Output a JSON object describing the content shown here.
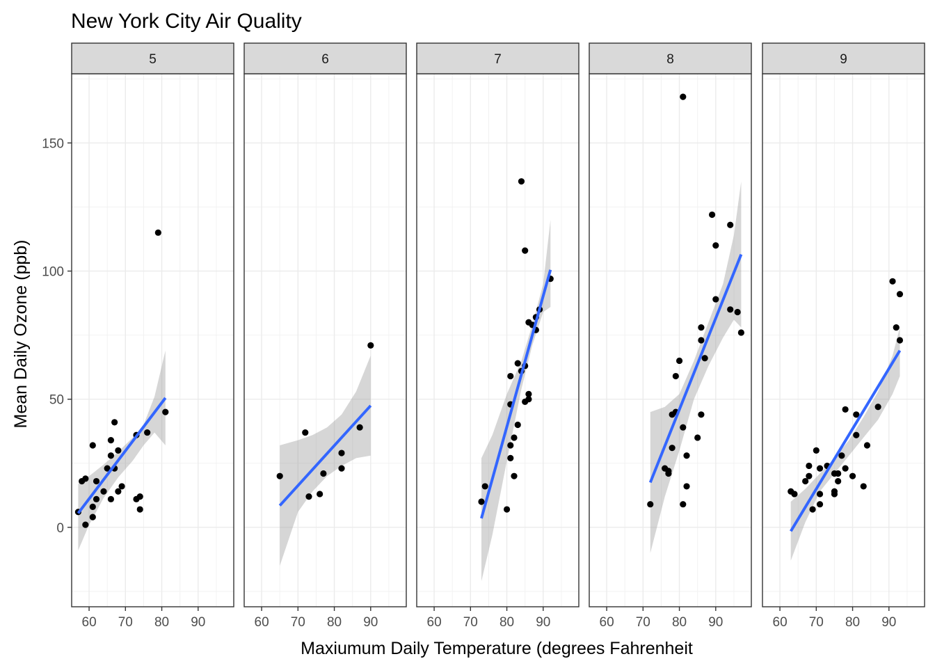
{
  "chart_data": {
    "type": "scatter",
    "title": "New York City Air Quality",
    "xlabel": "Maxiumum Daily Temperature (degrees Fahrenheit",
    "ylabel": "Mean Daily Ozone (ppb)",
    "xlim": [
      55.2,
      99.8
    ],
    "ylim": [
      -31,
      177
    ],
    "x_ticks": [
      60,
      70,
      80,
      90
    ],
    "y_ticks": [
      0,
      50,
      100,
      150
    ],
    "grid": true,
    "colors": {
      "points": "#000000",
      "fit_line": "#3366ff",
      "ribbon": "#999999",
      "strip_fill": "#d9d9d9"
    },
    "facets": [
      {
        "label": "5",
        "points": [
          [
            57,
            6
          ],
          [
            58,
            18
          ],
          [
            59,
            19
          ],
          [
            59,
            1
          ],
          [
            61,
            32
          ],
          [
            61,
            4
          ],
          [
            61,
            8
          ],
          [
            62,
            11
          ],
          [
            62,
            18
          ],
          [
            64,
            14
          ],
          [
            65,
            23
          ],
          [
            66,
            34
          ],
          [
            66,
            28
          ],
          [
            66,
            11
          ],
          [
            67,
            41
          ],
          [
            67,
            23
          ],
          [
            68,
            14
          ],
          [
            68,
            30
          ],
          [
            69,
            16
          ],
          [
            73,
            36
          ],
          [
            73,
            11
          ],
          [
            74,
            7
          ],
          [
            74,
            12
          ],
          [
            76,
            37
          ],
          [
            79,
            115
          ],
          [
            81,
            45
          ]
        ],
        "fit": [
          [
            57,
            5.5
          ],
          [
            81,
            50.5
          ]
        ],
        "ribbon_upper": [
          [
            57,
            17
          ],
          [
            60,
            20
          ],
          [
            64,
            24.5
          ],
          [
            68,
            29.5
          ],
          [
            72,
            35
          ],
          [
            75,
            40
          ],
          [
            78,
            51
          ],
          [
            81,
            69
          ]
        ],
        "ribbon_lower": [
          [
            57,
            -9
          ],
          [
            60,
            1
          ],
          [
            64,
            11.5
          ],
          [
            68,
            19.5
          ],
          [
            72,
            26
          ],
          [
            75,
            32
          ],
          [
            78,
            37
          ],
          [
            81,
            32
          ]
        ]
      },
      {
        "label": "6",
        "points": [
          [
            65,
            20
          ],
          [
            72,
            37
          ],
          [
            73,
            12
          ],
          [
            76,
            13
          ],
          [
            77,
            21
          ],
          [
            82,
            29
          ],
          [
            82,
            23
          ],
          [
            87,
            39
          ],
          [
            90,
            71
          ]
        ],
        "fit": [
          [
            65,
            8.5
          ],
          [
            90,
            47.5
          ]
        ],
        "ribbon_upper": [
          [
            65,
            32
          ],
          [
            70,
            34
          ],
          [
            74,
            36
          ],
          [
            78,
            39
          ],
          [
            82,
            44
          ],
          [
            86,
            53
          ],
          [
            90,
            67
          ]
        ],
        "ribbon_lower": [
          [
            65,
            -15
          ],
          [
            70,
            6
          ],
          [
            74,
            14
          ],
          [
            78,
            20
          ],
          [
            82,
            24
          ],
          [
            86,
            27
          ],
          [
            90,
            28
          ]
        ]
      },
      {
        "label": "7",
        "points": [
          [
            73,
            10
          ],
          [
            74,
            16
          ],
          [
            80,
            7
          ],
          [
            81,
            59
          ],
          [
            81,
            48
          ],
          [
            81,
            32
          ],
          [
            81,
            27
          ],
          [
            82,
            35
          ],
          [
            82,
            20
          ],
          [
            83,
            64
          ],
          [
            83,
            40
          ],
          [
            84,
            135
          ],
          [
            84,
            61
          ],
          [
            85,
            108
          ],
          [
            85,
            63
          ],
          [
            85,
            49
          ],
          [
            86,
            80
          ],
          [
            86,
            52
          ],
          [
            86,
            50
          ],
          [
            87,
            79
          ],
          [
            88,
            82
          ],
          [
            88,
            77
          ],
          [
            89,
            85
          ],
          [
            92,
            97
          ]
        ],
        "fit": [
          [
            73,
            3.5
          ],
          [
            92,
            100.5
          ]
        ],
        "ribbon_upper": [
          [
            73,
            27
          ],
          [
            76,
            36
          ],
          [
            80,
            52
          ],
          [
            84,
            65
          ],
          [
            87,
            79
          ],
          [
            90,
            95
          ],
          [
            92,
            120
          ]
        ],
        "ribbon_lower": [
          [
            73,
            -21
          ],
          [
            76,
            -3
          ],
          [
            80,
            26
          ],
          [
            84,
            54
          ],
          [
            87,
            71
          ],
          [
            90,
            84
          ],
          [
            92,
            86
          ]
        ]
      },
      {
        "label": "8",
        "points": [
          [
            72,
            9
          ],
          [
            76,
            23
          ],
          [
            77,
            22
          ],
          [
            77,
            21
          ],
          [
            78,
            31
          ],
          [
            78,
            44
          ],
          [
            79,
            45
          ],
          [
            79,
            59
          ],
          [
            80,
            65
          ],
          [
            81,
            168
          ],
          [
            81,
            39
          ],
          [
            81,
            9
          ],
          [
            82,
            28
          ],
          [
            82,
            16
          ],
          [
            85,
            35
          ],
          [
            86,
            78
          ],
          [
            86,
            73
          ],
          [
            86,
            44
          ],
          [
            87,
            66
          ],
          [
            89,
            122
          ],
          [
            90,
            110
          ],
          [
            90,
            89
          ],
          [
            94,
            85
          ],
          [
            94,
            118
          ],
          [
            96,
            84
          ],
          [
            97,
            76
          ]
        ],
        "fit": [
          [
            72,
            17.5
          ],
          [
            97,
            106.5
          ]
        ],
        "ribbon_upper": [
          [
            72,
            45
          ],
          [
            76,
            47
          ],
          [
            80,
            52
          ],
          [
            84,
            65
          ],
          [
            88,
            80
          ],
          [
            92,
            95
          ],
          [
            95,
            114
          ],
          [
            97,
            135
          ]
        ],
        "ribbon_lower": [
          [
            72,
            -10
          ],
          [
            76,
            12
          ],
          [
            80,
            30
          ],
          [
            84,
            50
          ],
          [
            88,
            63
          ],
          [
            92,
            74
          ],
          [
            95,
            81
          ],
          [
            97,
            78
          ]
        ]
      },
      {
        "label": "9",
        "points": [
          [
            63,
            14
          ],
          [
            64,
            13
          ],
          [
            67,
            18
          ],
          [
            68,
            20
          ],
          [
            68,
            24
          ],
          [
            69,
            7
          ],
          [
            70,
            30
          ],
          [
            71,
            23
          ],
          [
            71,
            13
          ],
          [
            71,
            9
          ],
          [
            73,
            24
          ],
          [
            75,
            21
          ],
          [
            75,
            14
          ],
          [
            75,
            13
          ],
          [
            76,
            18
          ],
          [
            76,
            21
          ],
          [
            77,
            28
          ],
          [
            78,
            46
          ],
          [
            78,
            23
          ],
          [
            80,
            20
          ],
          [
            81,
            44
          ],
          [
            81,
            36
          ],
          [
            83,
            16
          ],
          [
            84,
            32
          ],
          [
            87,
            47
          ],
          [
            91,
            96
          ],
          [
            92,
            78
          ],
          [
            93,
            91
          ],
          [
            93,
            73
          ]
        ],
        "fit": [
          [
            63,
            -1.5
          ],
          [
            93,
            69
          ]
        ],
        "ribbon_upper": [
          [
            63,
            10
          ],
          [
            67,
            15
          ],
          [
            71,
            21
          ],
          [
            75,
            27
          ],
          [
            79,
            34
          ],
          [
            83,
            43
          ],
          [
            87,
            53
          ],
          [
            91,
            67
          ],
          [
            93,
            78
          ]
        ],
        "ribbon_lower": [
          [
            63,
            -13
          ],
          [
            67,
            2
          ],
          [
            71,
            14
          ],
          [
            75,
            21
          ],
          [
            79,
            28
          ],
          [
            83,
            35
          ],
          [
            87,
            42
          ],
          [
            91,
            52
          ],
          [
            93,
            59
          ]
        ]
      }
    ]
  }
}
